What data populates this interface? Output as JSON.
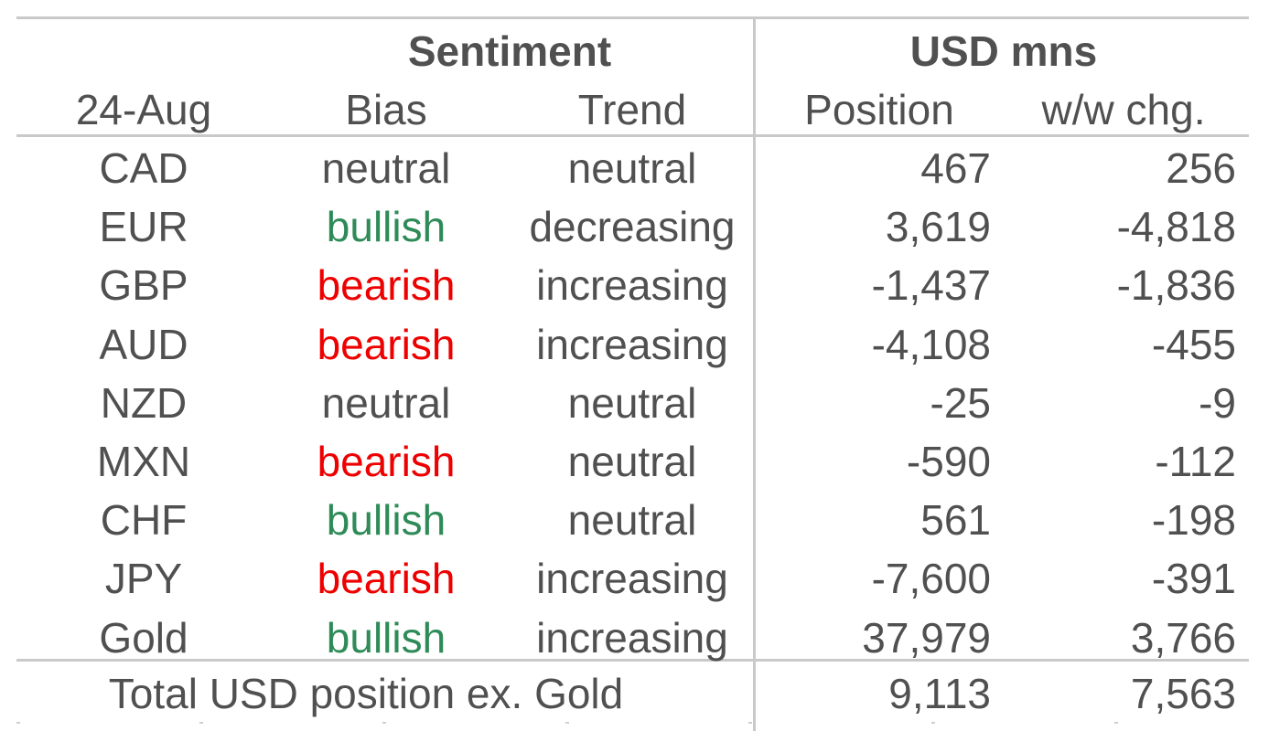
{
  "header": {
    "group_sentiment": "Sentiment",
    "group_usd": "USD mns",
    "col_date": "24-Aug",
    "col_bias": "Bias",
    "col_trend": "Trend",
    "col_position": "Position",
    "col_change": "w/w chg."
  },
  "rows": [
    {
      "currency": "CAD",
      "bias": "neutral",
      "trend": "neutral",
      "position": "467",
      "change": "256"
    },
    {
      "currency": "EUR",
      "bias": "bullish",
      "trend": "decreasing",
      "position": "3,619",
      "change": "-4,818"
    },
    {
      "currency": "GBP",
      "bias": "bearish",
      "trend": "increasing",
      "position": "-1,437",
      "change": "-1,836"
    },
    {
      "currency": "AUD",
      "bias": "bearish",
      "trend": "increasing",
      "position": "-4,108",
      "change": "-455"
    },
    {
      "currency": "NZD",
      "bias": "neutral",
      "trend": "neutral",
      "position": "-25",
      "change": "-9"
    },
    {
      "currency": "MXN",
      "bias": "bearish",
      "trend": "neutral",
      "position": "-590",
      "change": "-112"
    },
    {
      "currency": "CHF",
      "bias": "bullish",
      "trend": "neutral",
      "position": "561",
      "change": "-198"
    },
    {
      "currency": "JPY",
      "bias": "bearish",
      "trend": "increasing",
      "position": "-7,600",
      "change": "-391"
    },
    {
      "currency": "Gold",
      "bias": "bullish",
      "trend": "increasing",
      "position": "37,979",
      "change": "3,766"
    }
  ],
  "total": {
    "label": "Total USD position ex. Gold",
    "position": "9,113",
    "change": "7,563"
  },
  "colors": {
    "bullish": "#2e8b57",
    "bearish": "#ee0000",
    "text": "#505050",
    "rule": "#c9c9c9"
  }
}
